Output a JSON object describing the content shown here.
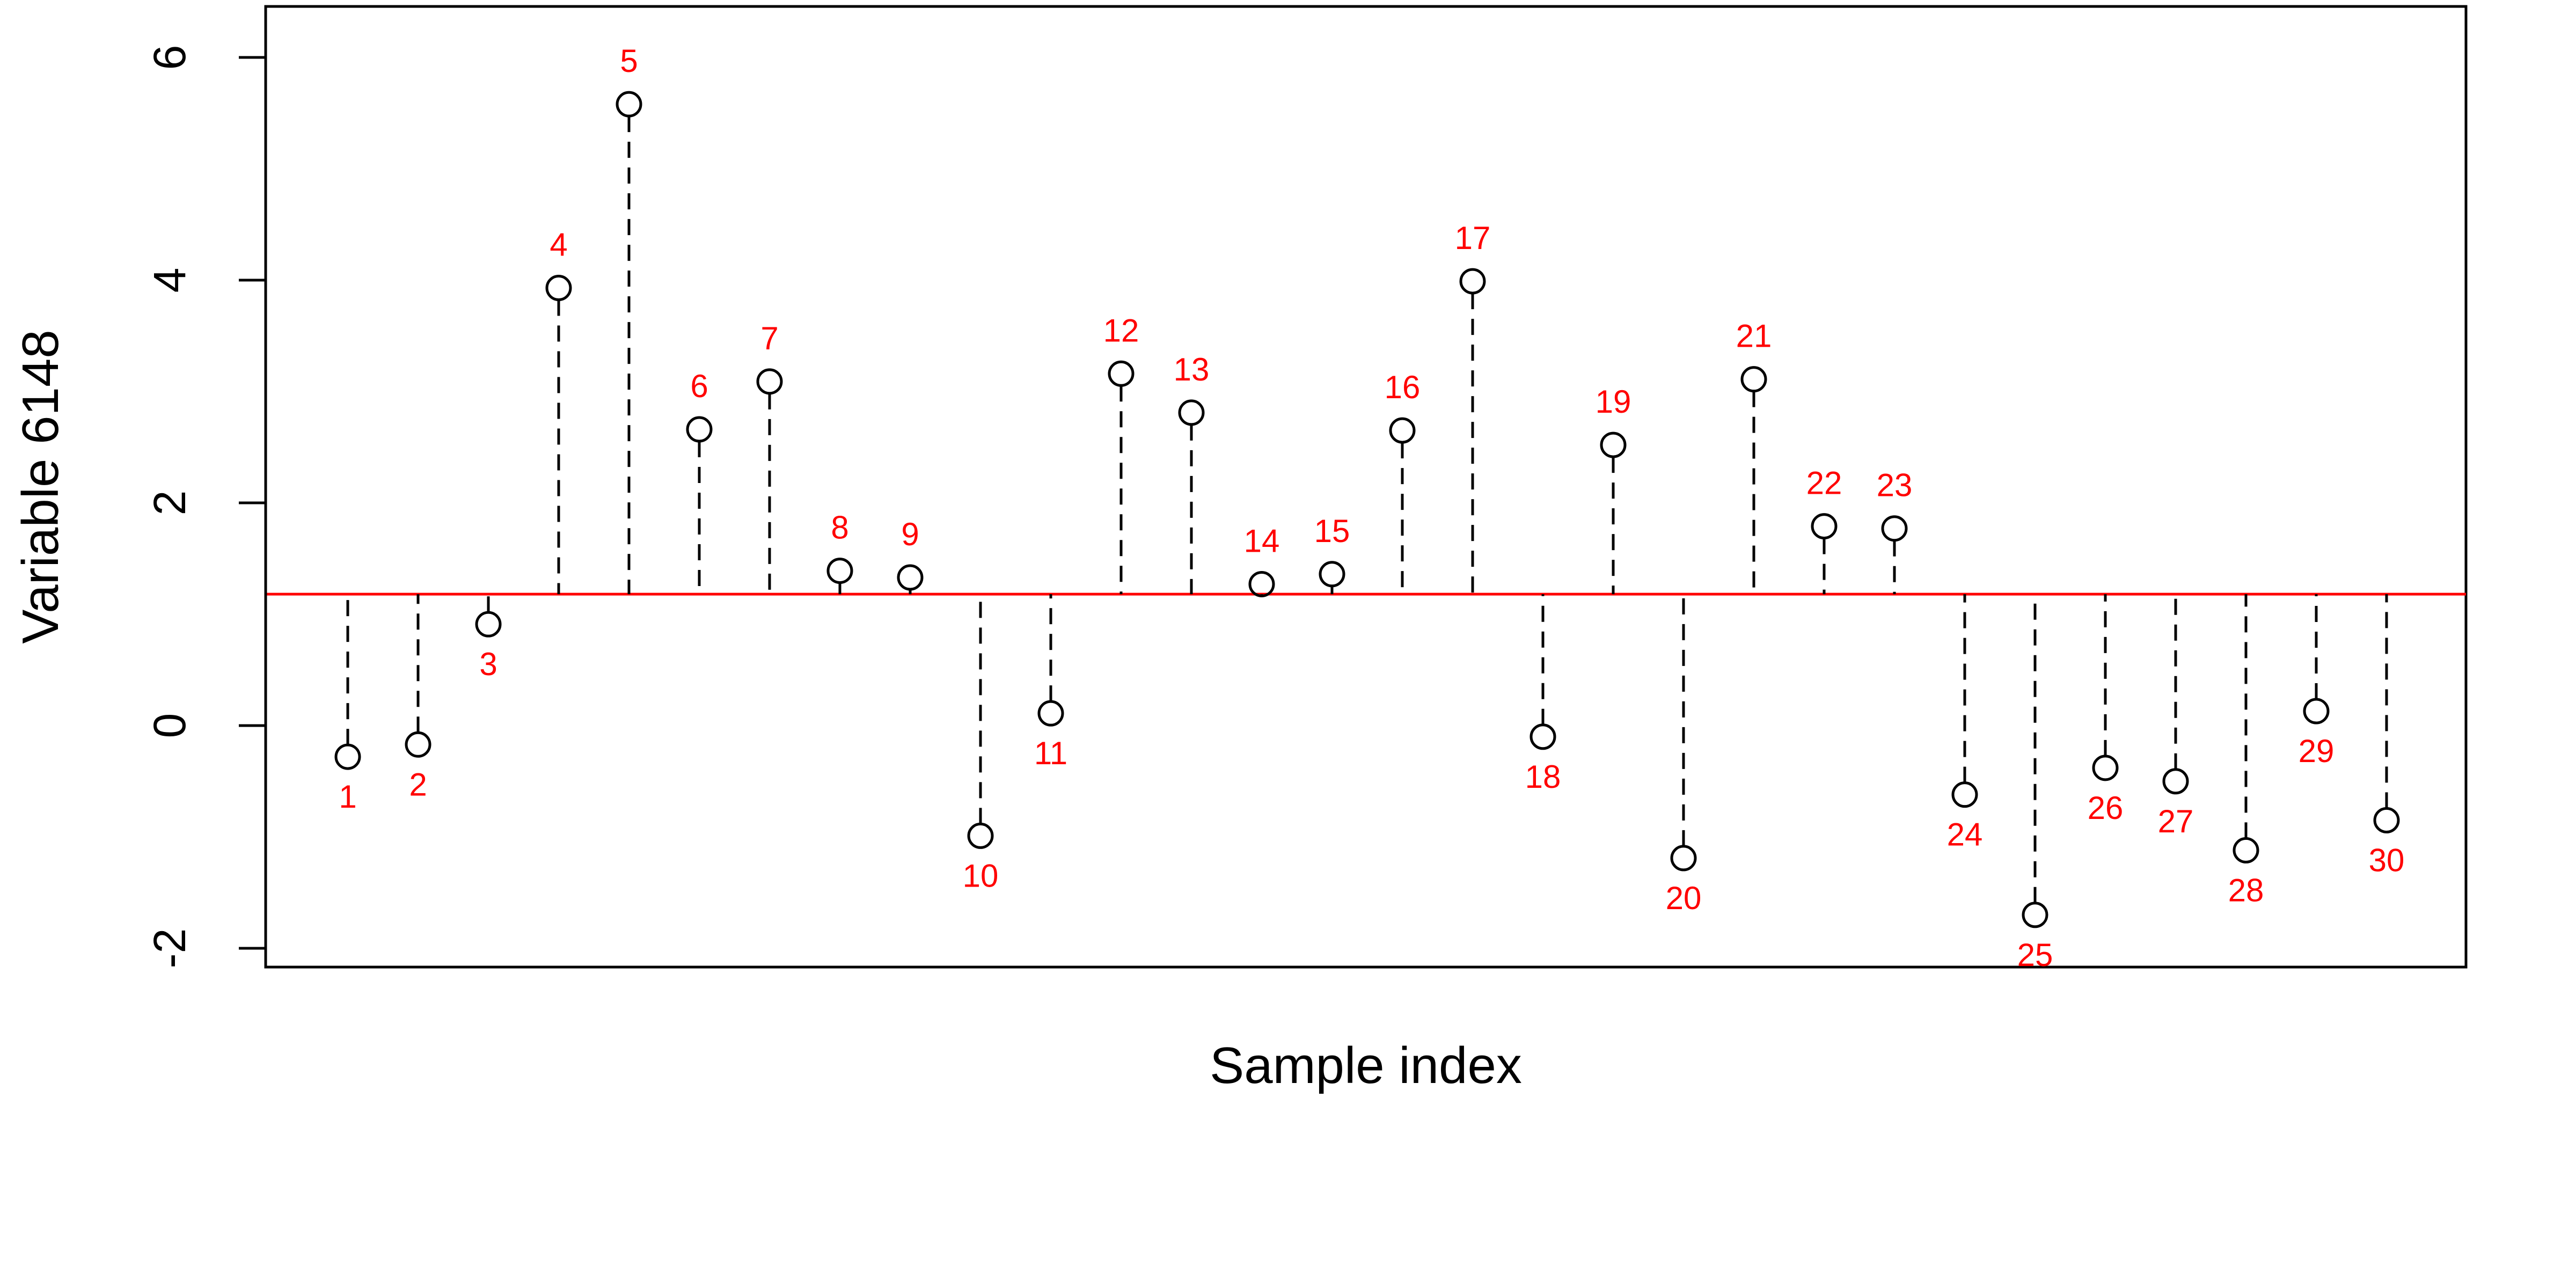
{
  "chart_data": {
    "type": "scatter",
    "xlabel": "Sample index",
    "ylabel": "Variable 6148",
    "ylim": [
      -2.2,
      6.45
    ],
    "yticks": [
      -2,
      0,
      2,
      4,
      6
    ],
    "reference_line": {
      "y": 1.18,
      "color": "#ff0000"
    },
    "x": [
      1,
      2,
      3,
      4,
      5,
      6,
      7,
      8,
      9,
      10,
      11,
      12,
      13,
      14,
      15,
      16,
      17,
      18,
      19,
      20,
      21,
      22,
      23,
      24,
      25,
      26,
      27,
      28,
      29,
      30
    ],
    "values": [
      -0.28,
      -0.17,
      0.91,
      3.93,
      5.58,
      2.66,
      3.09,
      1.39,
      1.33,
      -0.99,
      0.11,
      3.16,
      2.81,
      1.27,
      1.36,
      2.65,
      3.99,
      -0.1,
      2.52,
      -1.19,
      3.11,
      1.79,
      1.77,
      -0.62,
      -1.7,
      -0.38,
      -0.5,
      -1.12,
      0.13,
      -0.85
    ],
    "labels": [
      "1",
      "2",
      "3",
      "4",
      "5",
      "6",
      "7",
      "8",
      "9",
      "10",
      "11",
      "12",
      "13",
      "14",
      "15",
      "16",
      "17",
      "18",
      "19",
      "20",
      "21",
      "22",
      "23",
      "24",
      "25",
      "26",
      "27",
      "28",
      "29",
      "30"
    ],
    "grid": false,
    "marker": "open-circle",
    "stem_style": "dashed",
    "label_color": "#ff0000"
  }
}
